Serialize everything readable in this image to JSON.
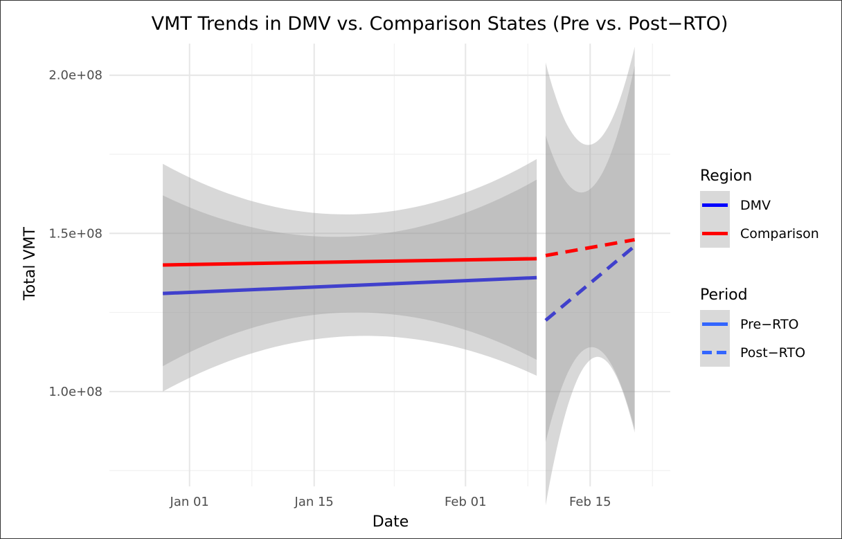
{
  "chart_data": {
    "type": "line",
    "title": "VMT Trends in DMV vs. Comparison States (Pre vs. Post−RTO)",
    "xlabel": "Date",
    "ylabel": "Total VMT",
    "xlim": [
      "2024-12-23",
      "2025-02-24"
    ],
    "ylim": [
      70000000,
      210000000
    ],
    "x_ticks": [
      {
        "date": "2025-01-01",
        "label": "Jan 01"
      },
      {
        "date": "2025-01-15",
        "label": "Jan 15"
      },
      {
        "date": "2025-02-01",
        "label": "Feb 01"
      },
      {
        "date": "2025-02-15",
        "label": "Feb 15"
      }
    ],
    "x_minor_dates": [
      "2025-01-08",
      "2025-01-24",
      "2025-02-08",
      "2025-02-22"
    ],
    "y_ticks": [
      {
        "value": 100000000,
        "label": "1.0e+08"
      },
      {
        "value": 150000000,
        "label": "1.5e+08"
      },
      {
        "value": 200000000,
        "label": "2.0e+08"
      }
    ],
    "y_minor_values": [
      75000000,
      125000000,
      175000000
    ],
    "grid": true,
    "legend": {
      "placement": "right",
      "groups": [
        {
          "title": "Region",
          "entries": [
            {
              "label": "DMV",
              "color": "#0000FF",
              "dash": "solid"
            },
            {
              "label": "Comparison",
              "color": "#FF0000",
              "dash": "solid"
            }
          ]
        },
        {
          "title": "Period",
          "entries": [
            {
              "label": "Pre−RTO",
              "color": "#3366FF",
              "dash": "solid"
            },
            {
              "label": "Post−RTO",
              "color": "#3366FF",
              "dash": "dashed"
            }
          ]
        }
      ]
    },
    "series": [
      {
        "region": "DMV",
        "period": "Pre−RTO",
        "color": "#4040CC",
        "dash": "solid",
        "x": [
          "2024-12-29",
          "2025-02-09"
        ],
        "y": [
          131000000,
          136000000
        ]
      },
      {
        "region": "Comparison",
        "period": "Pre−RTO",
        "color": "#FF0000",
        "dash": "solid",
        "x": [
          "2024-12-29",
          "2025-02-09"
        ],
        "y": [
          140000000,
          142000000
        ]
      },
      {
        "region": "DMV",
        "period": "Post−RTO",
        "color": "#4040CC",
        "dash": "dashed",
        "x": [
          "2025-02-10",
          "2025-02-20"
        ],
        "y": [
          122500000,
          146000000
        ]
      },
      {
        "region": "Comparison",
        "period": "Post−RTO",
        "color": "#FF0000",
        "dash": "dashed",
        "x": [
          "2025-02-10",
          "2025-02-20"
        ],
        "y": [
          143000000,
          148000000
        ]
      }
    ],
    "confidence_bands": [
      {
        "region": "Comparison",
        "period": "Pre−RTO",
        "x": [
          "2024-12-29",
          "2025-01-19",
          "2025-02-09"
        ],
        "lower": [
          108000000,
          125000000,
          110000000
        ],
        "upper": [
          172000000,
          156000000,
          173500000
        ]
      },
      {
        "region": "DMV",
        "period": "Pre−RTO",
        "x": [
          "2024-12-29",
          "2025-01-19",
          "2025-02-09"
        ],
        "lower": [
          100000000,
          117500000,
          105000000
        ],
        "upper": [
          162000000,
          149000000,
          167000000
        ]
      },
      {
        "region": "Comparison",
        "period": "Post−RTO",
        "x": [
          "2025-02-10",
          "2025-02-15",
          "2025-02-20"
        ],
        "lower": [
          84000000,
          114000000,
          88000000
        ],
        "upper": [
          181000000,
          164000000,
          203000000
        ]
      },
      {
        "region": "DMV",
        "period": "Post−RTO",
        "x": [
          "2025-02-10",
          "2025-02-15",
          "2025-02-20"
        ],
        "lower": [
          64000000,
          110000000,
          87000000
        ],
        "upper": [
          204000000,
          178000000,
          209000000
        ]
      }
    ]
  }
}
